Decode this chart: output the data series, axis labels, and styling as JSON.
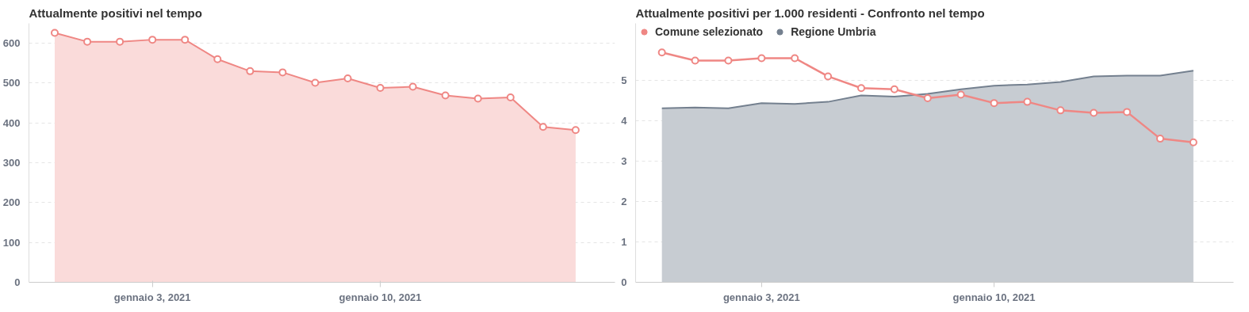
{
  "chart_data": [
    {
      "type": "area",
      "title": "Attualmente positivi nel tempo",
      "x": [
        "2020-12-31",
        "2021-01-01",
        "2021-01-02",
        "2021-01-03",
        "2021-01-04",
        "2021-01-05",
        "2021-01-06",
        "2021-01-07",
        "2021-01-08",
        "2021-01-09",
        "2021-01-10",
        "2021-01-11",
        "2021-01-12",
        "2021-01-13",
        "2021-01-14",
        "2021-01-15",
        "2021-01-16"
      ],
      "series": [
        {
          "color": "#ef8784",
          "values": [
            626,
            604,
            604,
            609,
            609,
            560,
            530,
            527,
            501,
            512,
            488,
            491,
            469,
            461,
            464,
            390,
            382
          ]
        }
      ],
      "xlim": [
        "2020-12-30T05:00",
        "2021-01-17T05:00"
      ],
      "xticks": [
        {
          "value": "2021-01-03",
          "label": "gennaio 3, 2021"
        },
        {
          "value": "2021-01-10",
          "label": "gennaio 10, 2021"
        }
      ],
      "ylim": [
        0,
        650
      ],
      "yticks": [
        0,
        100,
        200,
        300,
        400,
        500,
        600
      ],
      "grid": "y",
      "marker": "circle",
      "legend": false
    },
    {
      "type": "line",
      "title": "Attualmente positivi per 1.000 residenti - Confronto nel tempo",
      "x": [
        "2020-12-31",
        "2021-01-01",
        "2021-01-02",
        "2021-01-03",
        "2021-01-04",
        "2021-01-05",
        "2021-01-06",
        "2021-01-07",
        "2021-01-08",
        "2021-01-09",
        "2021-01-10",
        "2021-01-11",
        "2021-01-12",
        "2021-01-13",
        "2021-01-14",
        "2021-01-15",
        "2021-01-16"
      ],
      "series": [
        {
          "name": "Comune selezionato",
          "type": "line",
          "marker": "circle",
          "color": "#ef8784",
          "values": [
            5.68,
            5.48,
            5.48,
            5.54,
            5.54,
            5.09,
            4.8,
            4.77,
            4.55,
            4.64,
            4.43,
            4.46,
            4.25,
            4.19,
            4.21,
            3.55,
            3.46
          ]
        },
        {
          "name": "Regione Umbria",
          "type": "area",
          "marker": "none",
          "color": "#74808f",
          "values": [
            4.3,
            4.32,
            4.3,
            4.43,
            4.41,
            4.46,
            4.62,
            4.59,
            4.66,
            4.77,
            4.86,
            4.89,
            4.95,
            5.09,
            5.11,
            5.11,
            5.23
          ]
        }
      ],
      "xlim": [
        "2020-12-30T05:00",
        "2021-01-17T05:00"
      ],
      "xticks": [
        {
          "value": "2021-01-03",
          "label": "gennaio 3, 2021"
        },
        {
          "value": "2021-01-10",
          "label": "gennaio 10, 2021"
        }
      ],
      "ylim": [
        0,
        6.4
      ],
      "yticks": [
        0,
        1,
        2,
        3,
        4,
        5
      ],
      "grid": "y",
      "legend": "top left"
    }
  ]
}
